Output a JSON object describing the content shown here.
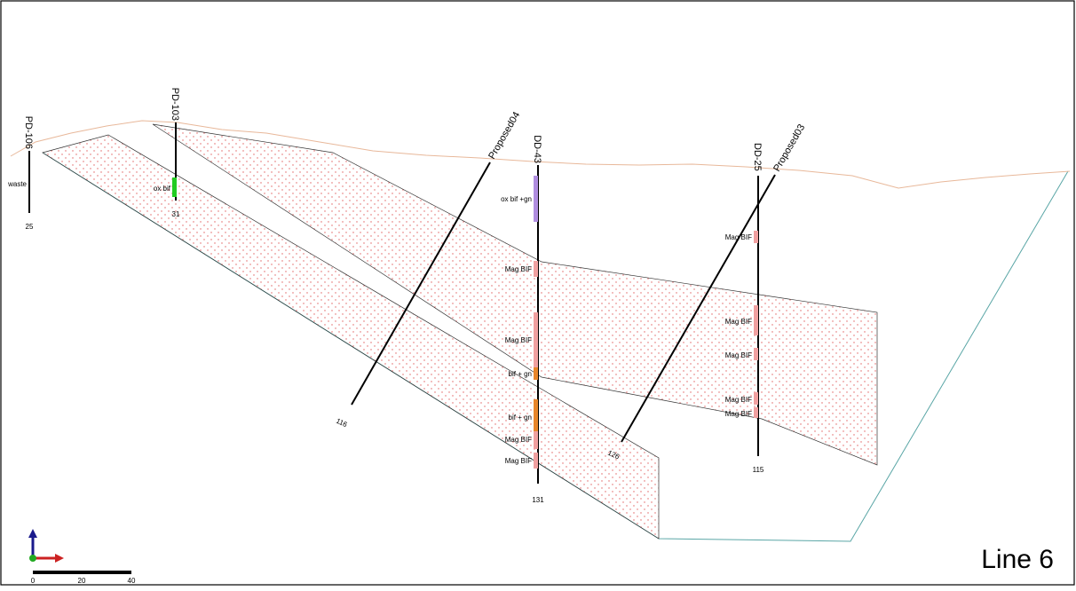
{
  "section": {
    "title": "Line 6"
  },
  "drillholes": [
    {
      "id": "pd106",
      "name": "PD-106",
      "end_depth": "25"
    },
    {
      "id": "pd103",
      "name": "PD-103",
      "end_depth": "31"
    },
    {
      "id": "proposed04",
      "name": "Proposed04",
      "end_depth": "116"
    },
    {
      "id": "dd43",
      "name": "DD-43",
      "end_depth": "131"
    },
    {
      "id": "dd25",
      "name": "DD-25",
      "end_depth": "115"
    },
    {
      "id": "proposed03",
      "name": "Proposed03",
      "end_depth": "126"
    }
  ],
  "intervals": [
    {
      "hole": "PD-106",
      "label": "waste"
    },
    {
      "hole": "PD-103",
      "label": "ox bif"
    },
    {
      "hole": "DD-43",
      "label": "ox bif +gn"
    },
    {
      "hole": "DD-43",
      "label": "Mag BIF"
    },
    {
      "hole": "DD-43",
      "label": "Mag BIF"
    },
    {
      "hole": "DD-43",
      "label": "bif + gn"
    },
    {
      "hole": "DD-43",
      "label": "bif + gn"
    },
    {
      "hole": "DD-43",
      "label": "Mag BIF"
    },
    {
      "hole": "DD-43",
      "label": "Mag BIF"
    },
    {
      "hole": "DD-25",
      "label": "Mag BIF"
    },
    {
      "hole": "DD-25",
      "label": "Mag BIF"
    },
    {
      "hole": "DD-25",
      "label": "Mag BIF"
    },
    {
      "hole": "DD-25",
      "label": "Mag BIF"
    },
    {
      "hole": "DD-25",
      "label": "Mag BIF"
    }
  ],
  "scale_bar": {
    "ticks": [
      "0",
      "20",
      "40"
    ]
  },
  "colors": {
    "topography": "#e8b89a",
    "model_outline": "#5aa6a6",
    "ore_fill_dots": "#e06060",
    "ox_bif": "#22cc22",
    "ox_bif_gn": "#b08ee0",
    "mag_bif": "#f0a0a0",
    "bif_gn": "#e8862a",
    "axis_up": "#1a1a8c",
    "axis_east": "#cc2222",
    "axis_north": "#22aa22"
  }
}
